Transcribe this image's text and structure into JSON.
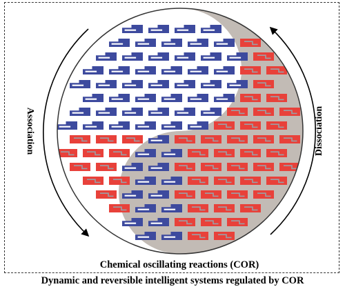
{
  "labels": {
    "left": "Association",
    "right": "Dissociation",
    "bottom": "Chemical oscillating reactions (COR)"
  },
  "caption": "Dynamic and reversible intelligent systems regulated by COR",
  "colors": {
    "upper_block": "#3d4a9e",
    "lower_block": "#e8413a",
    "grey_region": "#c2bbb5",
    "block_inner_on_red": "#9aa0a6"
  }
}
